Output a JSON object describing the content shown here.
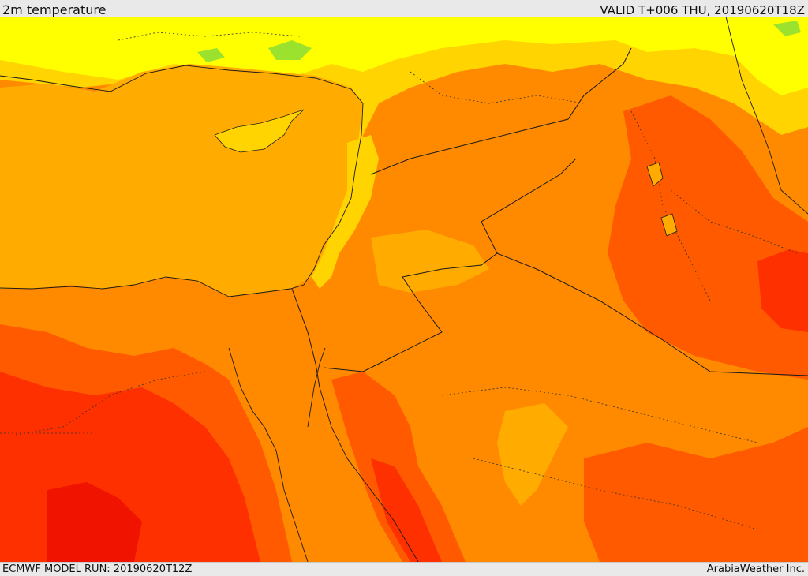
{
  "header": {
    "title": "2m temperature",
    "valid": "VALID T+006 THU, 20190620T18Z"
  },
  "footer": {
    "model_run": "ECMWF MODEL RUN: 20190620T12Z",
    "credit": "ArabiaWeather Inc."
  },
  "colors": {
    "mild_green": "#9be22e",
    "yellow": "#ffff00",
    "yellow_orange": "#ffd400",
    "light_orange": "#ffab00",
    "orange": "#ff8a00",
    "dark_orange": "#ff5a00",
    "red_orange": "#ff3000",
    "red": "#f01400"
  }
}
